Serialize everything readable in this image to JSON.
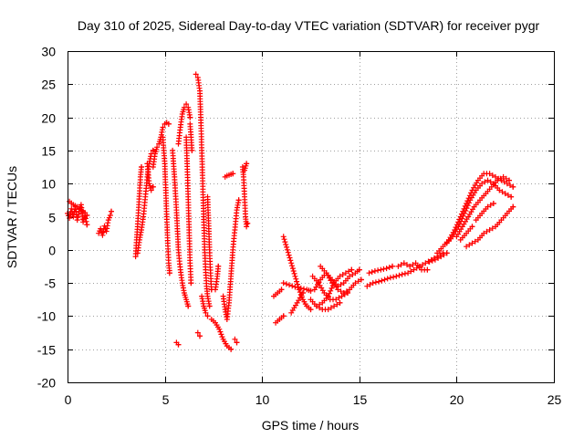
{
  "chart_data": {
    "type": "scatter",
    "title": "Day 310 of 2025, Sidereal Day-to-day VTEC variation (SDTVAR) for receiver pygr",
    "xlabel": "GPS time / hours",
    "ylabel": "SDTVAR / TECUs",
    "xlim": [
      0,
      25
    ],
    "ylim": [
      -20,
      30
    ],
    "xticks": [
      0,
      5,
      10,
      15,
      20,
      25
    ],
    "yticks": [
      -20,
      -15,
      -10,
      -5,
      0,
      5,
      10,
      15,
      20,
      25,
      30
    ],
    "grid": true,
    "marker": "+",
    "color": "#ff0000",
    "tracks": [
      [
        [
          0.0,
          5.5
        ],
        [
          0.1,
          4.8
        ],
        [
          0.2,
          6.2
        ],
        [
          0.3,
          5.0
        ],
        [
          0.4,
          6.5
        ],
        [
          0.5,
          4.5
        ],
        [
          0.6,
          5.8
        ],
        [
          0.7,
          6.8
        ],
        [
          0.8,
          4.2
        ],
        [
          0.9,
          5.2
        ],
        [
          1.0,
          3.8
        ]
      ],
      [
        [
          0.1,
          7.3
        ],
        [
          0.3,
          6.8
        ],
        [
          0.5,
          6.5
        ],
        [
          0.7,
          6.0
        ],
        [
          0.9,
          5.6
        ],
        [
          1.0,
          5.2
        ]
      ],
      [
        [
          1.6,
          2.5
        ],
        [
          1.7,
          3.2
        ],
        [
          1.8,
          2.2
        ],
        [
          1.9,
          3.6
        ],
        [
          2.0,
          2.8
        ],
        [
          2.1,
          4.5
        ],
        [
          2.2,
          5.2
        ],
        [
          2.25,
          5.8
        ]
      ],
      [
        [
          3.5,
          -1.0
        ],
        [
          3.55,
          1.5
        ],
        [
          3.6,
          3.5
        ],
        [
          3.65,
          6.0
        ],
        [
          3.7,
          8.5
        ],
        [
          3.75,
          11.0
        ],
        [
          3.8,
          12.5
        ]
      ],
      [
        [
          3.6,
          -0.5
        ],
        [
          3.7,
          1.5
        ],
        [
          3.8,
          3.0
        ],
        [
          3.9,
          5.0
        ],
        [
          4.0,
          8.0
        ],
        [
          4.1,
          11.0
        ],
        [
          4.2,
          13.0
        ],
        [
          4.3,
          14.5
        ],
        [
          4.4,
          15.0
        ]
      ],
      [
        [
          4.1,
          13.0
        ],
        [
          4.2,
          10.0
        ],
        [
          4.3,
          9.0
        ],
        [
          4.4,
          9.5
        ]
      ],
      [
        [
          4.4,
          12.5
        ],
        [
          4.5,
          14.5
        ],
        [
          4.6,
          15.5
        ],
        [
          4.7,
          16.0
        ],
        [
          4.8,
          17.0
        ],
        [
          4.9,
          18.5
        ],
        [
          5.0,
          19.0
        ],
        [
          5.1,
          19.2
        ],
        [
          5.2,
          19.0
        ]
      ],
      [
        [
          4.9,
          17.0
        ],
        [
          5.0,
          13.0
        ],
        [
          5.05,
          9.0
        ],
        [
          5.1,
          5.0
        ],
        [
          5.15,
          1.0
        ],
        [
          5.2,
          -2.0
        ],
        [
          5.25,
          -3.5
        ]
      ],
      [
        [
          5.4,
          15.0
        ],
        [
          5.5,
          11.0
        ],
        [
          5.6,
          6.0
        ],
        [
          5.7,
          0.0
        ],
        [
          5.8,
          -3.0
        ],
        [
          5.9,
          -5.0
        ],
        [
          6.0,
          -6.5
        ],
        [
          6.1,
          -7.5
        ],
        [
          6.2,
          -8.5
        ]
      ],
      [
        [
          5.7,
          16.0
        ],
        [
          5.8,
          18.5
        ],
        [
          5.9,
          20.5
        ],
        [
          6.0,
          21.5
        ],
        [
          6.1,
          22.0
        ],
        [
          6.2,
          21.5
        ],
        [
          6.3,
          20.0
        ]
      ],
      [
        [
          6.1,
          17.0
        ],
        [
          6.15,
          13.0
        ],
        [
          6.2,
          8.0
        ],
        [
          6.25,
          3.0
        ],
        [
          6.3,
          -2.0
        ],
        [
          6.35,
          -5.0
        ]
      ],
      [
        [
          6.3,
          19.0
        ],
        [
          6.4,
          15.0
        ]
      ],
      [
        [
          6.6,
          26.5
        ],
        [
          6.7,
          26.0
        ],
        [
          6.8,
          24.0
        ],
        [
          6.85,
          20.0
        ],
        [
          6.9,
          15.0
        ],
        [
          6.95,
          10.0
        ],
        [
          7.0,
          5.0
        ],
        [
          7.05,
          0.0
        ],
        [
          7.1,
          -3.0
        ],
        [
          7.15,
          -5.5
        ],
        [
          7.2,
          -7.0
        ],
        [
          7.3,
          -8.5
        ]
      ],
      [
        [
          6.9,
          -7.0
        ],
        [
          7.0,
          -8.5
        ],
        [
          7.1,
          -9.5
        ],
        [
          7.2,
          -10.0
        ]
      ],
      [
        [
          7.2,
          8.0
        ],
        [
          7.25,
          4.0
        ],
        [
          7.3,
          0.0
        ],
        [
          7.35,
          -3.5
        ],
        [
          7.4,
          -6.0
        ]
      ],
      [
        [
          7.4,
          -10.5
        ],
        [
          7.6,
          -11.0
        ],
        [
          7.8,
          -12.0
        ],
        [
          8.0,
          -13.5
        ],
        [
          8.2,
          -14.5
        ],
        [
          8.4,
          -15.0
        ]
      ],
      [
        [
          6.7,
          -12.5
        ],
        [
          6.8,
          -13.0
        ]
      ],
      [
        [
          5.6,
          -14.0
        ],
        [
          5.7,
          -14.3
        ]
      ],
      [
        [
          7.6,
          -6.0
        ],
        [
          7.7,
          -4.0
        ],
        [
          7.75,
          -2.5
        ]
      ],
      [
        [
          8.1,
          11.0
        ],
        [
          8.2,
          11.2
        ],
        [
          8.3,
          11.3
        ],
        [
          8.4,
          11.4
        ],
        [
          8.5,
          11.5
        ]
      ],
      [
        [
          8.0,
          -7.0
        ],
        [
          8.1,
          -9.0
        ],
        [
          8.2,
          -10.5
        ],
        [
          8.3,
          -8.0
        ],
        [
          8.4,
          -4.0
        ],
        [
          8.5,
          0.0
        ],
        [
          8.6,
          3.0
        ],
        [
          8.7,
          6.0
        ],
        [
          8.8,
          7.5
        ]
      ],
      [
        [
          8.6,
          -13.5
        ],
        [
          8.7,
          -14.0
        ]
      ],
      [
        [
          9.0,
          12.5
        ],
        [
          9.05,
          11.0
        ],
        [
          9.1,
          8.0
        ],
        [
          9.15,
          5.0
        ],
        [
          9.2,
          3.5
        ],
        [
          9.25,
          4.0
        ]
      ],
      [
        [
          9.1,
          12.0
        ],
        [
          9.2,
          13.0
        ]
      ],
      [
        [
          10.6,
          -7.0
        ],
        [
          10.8,
          -6.5
        ],
        [
          11.0,
          -6.0
        ]
      ],
      [
        [
          10.7,
          -11.0
        ],
        [
          10.9,
          -10.5
        ],
        [
          11.1,
          -10.0
        ]
      ],
      [
        [
          11.1,
          2.0
        ],
        [
          11.3,
          0.0
        ],
        [
          11.5,
          -2.0
        ],
        [
          11.7,
          -4.0
        ],
        [
          11.9,
          -6.0
        ],
        [
          12.1,
          -7.5
        ],
        [
          12.3,
          -8.5
        ],
        [
          12.5,
          -9.0
        ]
      ],
      [
        [
          11.5,
          -9.5
        ],
        [
          11.8,
          -8.0
        ],
        [
          12.1,
          -6.5
        ]
      ],
      [
        [
          11.1,
          -5.0
        ],
        [
          11.4,
          -5.3
        ],
        [
          11.7,
          -5.6
        ],
        [
          12.0,
          -5.8
        ],
        [
          12.3,
          -6.0
        ],
        [
          12.5,
          -6.2
        ]
      ],
      [
        [
          12.5,
          -7.5
        ],
        [
          12.8,
          -8.5
        ],
        [
          13.1,
          -8.0
        ],
        [
          13.4,
          -7.0
        ],
        [
          13.7,
          -5.0
        ],
        [
          14.0,
          -4.0
        ],
        [
          14.3,
          -3.5
        ],
        [
          14.6,
          -3.0
        ]
      ],
      [
        [
          12.7,
          -6.0
        ],
        [
          13.0,
          -4.5
        ],
        [
          13.3,
          -3.5
        ],
        [
          13.6,
          -4.5
        ],
        [
          13.9,
          -6.0
        ],
        [
          14.2,
          -6.5
        ],
        [
          14.5,
          -6.0
        ],
        [
          14.8,
          -5.0
        ],
        [
          15.1,
          -4.5
        ]
      ],
      [
        [
          12.6,
          -4.0
        ],
        [
          12.9,
          -5.0
        ],
        [
          13.2,
          -6.5
        ],
        [
          13.5,
          -7.5
        ],
        [
          13.8,
          -7.5
        ],
        [
          14.1,
          -7.0
        ],
        [
          14.4,
          -6.5
        ]
      ],
      [
        [
          13.0,
          -2.5
        ],
        [
          13.3,
          -3.5
        ],
        [
          13.6,
          -5.0
        ],
        [
          13.9,
          -5.5
        ],
        [
          14.2,
          -5.0
        ],
        [
          14.5,
          -4.0
        ],
        [
          14.8,
          -3.5
        ],
        [
          15.0,
          -3.0
        ]
      ],
      [
        [
          12.8,
          -8.5
        ],
        [
          13.1,
          -9.0
        ],
        [
          13.4,
          -9.0
        ],
        [
          13.7,
          -8.5
        ],
        [
          14.0,
          -8.0
        ]
      ],
      [
        [
          15.4,
          -5.5
        ],
        [
          15.7,
          -5.0
        ],
        [
          16.0,
          -4.8
        ],
        [
          16.3,
          -4.5
        ],
        [
          16.6,
          -4.2
        ],
        [
          16.9,
          -4.0
        ],
        [
          17.2,
          -3.7
        ],
        [
          17.5,
          -3.5
        ],
        [
          17.8,
          -3.0
        ],
        [
          18.1,
          -2.5
        ],
        [
          18.4,
          -2.0
        ],
        [
          18.7,
          -1.5
        ],
        [
          19.0,
          -1.0
        ],
        [
          19.3,
          -0.5
        ]
      ],
      [
        [
          15.5,
          -3.5
        ],
        [
          15.8,
          -3.2
        ],
        [
          16.1,
          -3.0
        ],
        [
          16.4,
          -2.8
        ],
        [
          16.7,
          -2.5
        ]
      ],
      [
        [
          17.0,
          -2.5
        ],
        [
          17.3,
          -2.0
        ],
        [
          17.6,
          -2.5
        ],
        [
          17.9,
          -2.0
        ],
        [
          18.2,
          -3.0
        ],
        [
          18.5,
          -3.0
        ]
      ],
      [
        [
          18.6,
          -1.8
        ],
        [
          18.9,
          -1.5
        ],
        [
          19.2,
          -1.0
        ],
        [
          19.5,
          -0.5
        ]
      ],
      [
        [
          19.0,
          -0.5
        ],
        [
          19.3,
          0.5
        ],
        [
          19.6,
          1.5
        ],
        [
          19.9,
          3.0
        ],
        [
          20.2,
          5.0
        ],
        [
          20.5,
          7.0
        ],
        [
          20.8,
          9.0
        ],
        [
          21.1,
          10.5
        ],
        [
          21.4,
          11.5
        ],
        [
          21.7,
          11.5
        ],
        [
          22.0,
          11.0
        ],
        [
          22.3,
          10.5
        ],
        [
          22.6,
          10.0
        ],
        [
          22.9,
          9.5
        ]
      ],
      [
        [
          19.5,
          1.0
        ],
        [
          19.8,
          2.0
        ],
        [
          20.1,
          3.5
        ],
        [
          20.4,
          5.5
        ],
        [
          20.7,
          7.5
        ],
        [
          21.0,
          9.0
        ],
        [
          21.3,
          10.0
        ],
        [
          21.6,
          10.5
        ],
        [
          21.9,
          10.0
        ],
        [
          22.2,
          9.0
        ],
        [
          22.5,
          8.5
        ],
        [
          22.8,
          8.0
        ]
      ],
      [
        [
          20.0,
          2.0
        ],
        [
          20.3,
          3.5
        ],
        [
          20.6,
          5.0
        ],
        [
          20.9,
          6.5
        ],
        [
          21.2,
          7.5
        ],
        [
          21.5,
          8.5
        ],
        [
          21.8,
          9.5
        ],
        [
          22.1,
          10.5
        ],
        [
          22.4,
          11.0
        ],
        [
          22.7,
          10.5
        ]
      ],
      [
        [
          20.5,
          0.5
        ],
        [
          20.8,
          1.0
        ],
        [
          21.1,
          1.5
        ],
        [
          21.4,
          2.5
        ],
        [
          21.7,
          3.0
        ],
        [
          22.0,
          3.5
        ],
        [
          22.3,
          4.5
        ],
        [
          22.6,
          5.5
        ],
        [
          22.9,
          6.5
        ]
      ],
      [
        [
          21.0,
          4.5
        ],
        [
          21.3,
          5.5
        ],
        [
          21.6,
          6.5
        ],
        [
          21.9,
          7.0
        ]
      ],
      [
        [
          20.2,
          1.5
        ],
        [
          20.5,
          2.5
        ],
        [
          20.8,
          3.5
        ]
      ]
    ]
  }
}
